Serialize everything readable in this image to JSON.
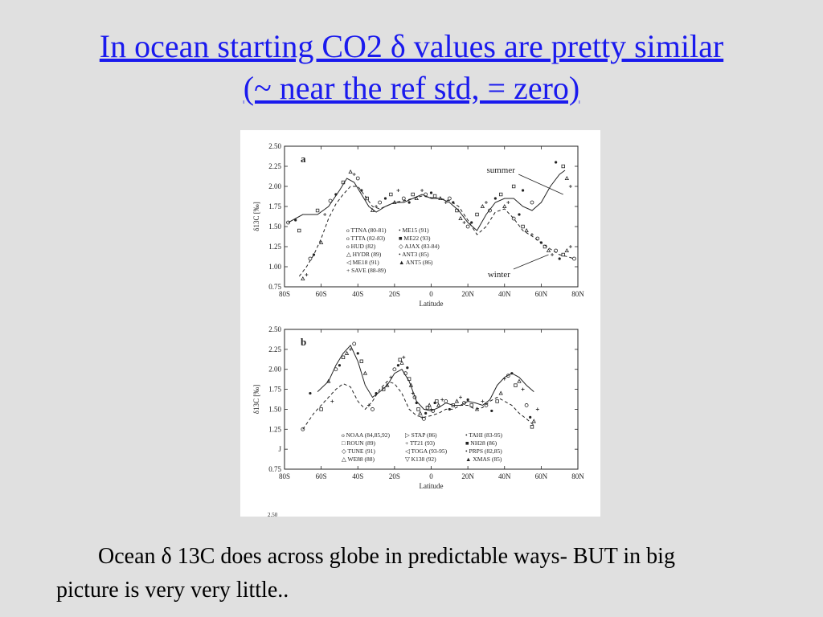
{
  "slide": {
    "title_line1": "In ocean starting CO2 δ values are pretty similar",
    "title_line2": "(~ near the ref std, = zero)",
    "caption_line1": "Ocean δ 13C does across globe in predictable ways- BUT in big",
    "caption_line2": "picture is very very little.."
  },
  "colors": {
    "background": "#e0e0e0",
    "title": "#1a1aee",
    "panel": "#ffffff",
    "ink": "#222222"
  },
  "chart_data": [
    {
      "panel_label": "a",
      "type": "scatter",
      "xlabel": "Latitude",
      "ylabel": "δ13C [‰]",
      "xticks": [
        "80S",
        "60S",
        "40S",
        "20S",
        "0",
        "20N",
        "40N",
        "60N",
        "80N"
      ],
      "yticks": [
        "2.50",
        "2.25",
        "2.00",
        "1.75",
        "1.50",
        "1.25",
        "1.00",
        "0.75"
      ],
      "xlim": [
        -80,
        80
      ],
      "ylim": [
        0.75,
        2.5
      ],
      "annotations": [
        {
          "text": "summer",
          "x": 38,
          "y": 2.17
        },
        {
          "text": "winter",
          "x": 37,
          "y": 0.87
        }
      ],
      "legend": [
        [
          "o TTNA (80-81)",
          "• ME15 (91)"
        ],
        [
          "o TTTA (82-83)",
          "■ ME22 (93)"
        ],
        [
          "o HUD (82)",
          "◇ AJAX (83-84)"
        ],
        [
          "△ HYDR (89)",
          "• ANT3 (85)"
        ],
        [
          "◁ ME18 (91)",
          "▲ ANT5 (86)"
        ],
        [
          "+ SAVE (88-89)",
          ""
        ]
      ],
      "series": [
        {
          "name": "summer",
          "style": "solid",
          "x": [
            -78,
            -70,
            -62,
            -56,
            -50,
            -46,
            -42,
            -38,
            -34,
            -30,
            -25,
            -20,
            -15,
            -10,
            -5,
            0,
            5,
            10,
            15,
            20,
            25,
            30,
            35,
            40,
            45,
            50,
            55,
            60,
            65,
            70,
            73
          ],
          "y": [
            1.55,
            1.65,
            1.65,
            1.75,
            1.95,
            2.1,
            2.05,
            1.9,
            1.75,
            1.68,
            1.75,
            1.8,
            1.8,
            1.85,
            1.9,
            1.85,
            1.85,
            1.8,
            1.7,
            1.55,
            1.45,
            1.65,
            1.8,
            1.85,
            1.85,
            1.75,
            1.7,
            1.8,
            2.0,
            2.15,
            2.2
          ]
        },
        {
          "name": "winter",
          "style": "dashed",
          "x": [
            -72,
            -68,
            -64,
            -60,
            -56,
            -52,
            -48,
            -44,
            -40,
            -36,
            -32,
            -28,
            -24,
            -20,
            -15,
            -10,
            -5,
            0,
            5,
            10,
            15,
            20,
            25,
            30,
            35,
            40,
            45,
            50,
            55,
            60,
            65,
            70,
            75,
            78
          ],
          "y": [
            0.88,
            1.0,
            1.15,
            1.35,
            1.6,
            1.78,
            1.9,
            2.0,
            2.0,
            1.88,
            1.75,
            1.72,
            1.76,
            1.8,
            1.82,
            1.85,
            1.88,
            1.86,
            1.85,
            1.82,
            1.75,
            1.58,
            1.4,
            1.5,
            1.68,
            1.72,
            1.6,
            1.45,
            1.38,
            1.3,
            1.22,
            1.15,
            1.12,
            1.1
          ]
        }
      ],
      "points": [
        [
          -78,
          1.55
        ],
        [
          -74,
          1.58
        ],
        [
          -72,
          1.45
        ],
        [
          -70,
          0.85
        ],
        [
          -68,
          0.9
        ],
        [
          -66,
          1.1
        ],
        [
          -64,
          1.15
        ],
        [
          -62,
          1.7
        ],
        [
          -60,
          1.3
        ],
        [
          -58,
          1.65
        ],
        [
          -55,
          1.82
        ],
        [
          -52,
          1.9
        ],
        [
          -48,
          2.05
        ],
        [
          -44,
          2.18
        ],
        [
          -42,
          2.15
        ],
        [
          -40,
          2.1
        ],
        [
          -38,
          1.95
        ],
        [
          -35,
          1.85
        ],
        [
          -32,
          1.7
        ],
        [
          -30,
          1.75
        ],
        [
          -28,
          1.8
        ],
        [
          -25,
          1.85
        ],
        [
          -22,
          1.9
        ],
        [
          -20,
          1.8
        ],
        [
          -18,
          1.95
        ],
        [
          -15,
          1.85
        ],
        [
          -12,
          1.8
        ],
        [
          -10,
          1.9
        ],
        [
          -8,
          1.85
        ],
        [
          -5,
          1.95
        ],
        [
          -3,
          1.9
        ],
        [
          0,
          1.92
        ],
        [
          2,
          1.88
        ],
        [
          5,
          1.85
        ],
        [
          8,
          1.8
        ],
        [
          10,
          1.85
        ],
        [
          12,
          1.8
        ],
        [
          14,
          1.7
        ],
        [
          16,
          1.6
        ],
        [
          18,
          1.55
        ],
        [
          20,
          1.5
        ],
        [
          22,
          1.55
        ],
        [
          25,
          1.65
        ],
        [
          28,
          1.75
        ],
        [
          30,
          1.8
        ],
        [
          32,
          1.7
        ],
        [
          35,
          1.85
        ],
        [
          38,
          1.9
        ],
        [
          40,
          1.75
        ],
        [
          42,
          1.8
        ],
        [
          45,
          1.6
        ],
        [
          48,
          1.65
        ],
        [
          50,
          1.5
        ],
        [
          52,
          1.45
        ],
        [
          55,
          1.4
        ],
        [
          58,
          1.35
        ],
        [
          60,
          1.3
        ],
        [
          62,
          1.25
        ],
        [
          64,
          1.2
        ],
        [
          66,
          1.15
        ],
        [
          68,
          1.2
        ],
        [
          70,
          1.1
        ],
        [
          72,
          1.15
        ],
        [
          74,
          1.2
        ],
        [
          76,
          1.25
        ],
        [
          78,
          1.1
        ],
        [
          68,
          2.3
        ],
        [
          72,
          2.25
        ],
        [
          74,
          2.1
        ],
        [
          76,
          2.0
        ],
        [
          55,
          1.8
        ],
        [
          50,
          1.95
        ],
        [
          45,
          2.0
        ]
      ]
    },
    {
      "panel_label": "b",
      "type": "scatter",
      "xlabel": "Latitude",
      "ylabel": "δ13C [‰]",
      "xticks": [
        "80S",
        "60S",
        "40S",
        "20S",
        "0",
        "20N",
        "40N",
        "60N",
        "80N"
      ],
      "yticks": [
        "2.50",
        "2.25",
        "2.00",
        "1.75",
        "1.50",
        "1.25",
        "J",
        "0.75"
      ],
      "xlim": [
        -80,
        80
      ],
      "ylim": [
        0.75,
        2.5
      ],
      "legend": [
        [
          "o NOAA (84,85,92)",
          "▷ STAP (86)",
          "• TAHI (83-95)"
        ],
        [
          "□ ROUN (89)",
          "+ TT21 (93)",
          "■ NH28 (86)"
        ],
        [
          "◇ TUNE (91)",
          "◁ TOGA (93-95)",
          "• PRPS (82,85)"
        ],
        [
          "△ WE88 (88)",
          "▽ K138 (92)",
          "▲ XMAS (85)"
        ]
      ],
      "series": [
        {
          "name": "",
          "style": "solid",
          "x": [
            -62,
            -56,
            -52,
            -48,
            -44,
            -40,
            -36,
            -32,
            -28,
            -24,
            -20,
            -16,
            -12,
            -8,
            -4,
            0,
            4,
            8,
            12,
            16,
            20,
            24,
            28,
            32,
            36,
            40,
            44,
            48,
            52,
            56
          ],
          "y": [
            1.72,
            1.85,
            2.05,
            2.2,
            2.3,
            2.1,
            1.8,
            1.65,
            1.72,
            1.8,
            1.95,
            2.0,
            1.85,
            1.6,
            1.5,
            1.48,
            1.52,
            1.58,
            1.55,
            1.55,
            1.6,
            1.58,
            1.55,
            1.62,
            1.8,
            1.9,
            1.95,
            1.9,
            1.8,
            1.72
          ]
        },
        {
          "name": "",
          "style": "dashed",
          "x": [
            -70,
            -64,
            -58,
            -52,
            -48,
            -44,
            -40,
            -36,
            -32,
            -28,
            -24,
            -20,
            -16,
            -12,
            -8,
            -4,
            0,
            4,
            8,
            12,
            16,
            20,
            24,
            28,
            32,
            36,
            40,
            44,
            48,
            52,
            56
          ],
          "y": [
            1.25,
            1.45,
            1.6,
            1.75,
            1.82,
            1.78,
            1.6,
            1.5,
            1.6,
            1.75,
            1.85,
            1.82,
            1.7,
            1.5,
            1.42,
            1.4,
            1.42,
            1.45,
            1.5,
            1.5,
            1.55,
            1.55,
            1.5,
            1.52,
            1.6,
            1.65,
            1.6,
            1.55,
            1.45,
            1.38,
            1.3
          ]
        }
      ],
      "points": [
        [
          -70,
          1.25
        ],
        [
          -66,
          1.7
        ],
        [
          -60,
          1.5
        ],
        [
          -56,
          1.85
        ],
        [
          -54,
          1.6
        ],
        [
          -52,
          2.0
        ],
        [
          -50,
          2.05
        ],
        [
          -48,
          2.15
        ],
        [
          -46,
          2.2
        ],
        [
          -44,
          2.25
        ],
        [
          -42,
          2.32
        ],
        [
          -40,
          2.2
        ],
        [
          -38,
          2.1
        ],
        [
          -36,
          1.95
        ],
        [
          -34,
          1.55
        ],
        [
          -32,
          1.5
        ],
        [
          -30,
          1.7
        ],
        [
          -26,
          1.75
        ],
        [
          -24,
          1.8
        ],
        [
          -22,
          1.9
        ],
        [
          -20,
          2.0
        ],
        [
          -18,
          2.05
        ],
        [
          -17,
          2.12
        ],
        [
          -16,
          2.08
        ],
        [
          -15,
          2.15
        ],
        [
          -14,
          1.95
        ],
        [
          -13,
          2.02
        ],
        [
          -12,
          1.88
        ],
        [
          -11,
          1.8
        ],
        [
          -10,
          1.7
        ],
        [
          -9,
          1.65
        ],
        [
          -8,
          1.58
        ],
        [
          -7,
          1.5
        ],
        [
          -6,
          1.45
        ],
        [
          -5,
          1.4
        ],
        [
          -4,
          1.38
        ],
        [
          -3,
          1.45
        ],
        [
          -2,
          1.52
        ],
        [
          -1,
          1.55
        ],
        [
          0,
          1.5
        ],
        [
          1,
          1.48
        ],
        [
          2,
          1.58
        ],
        [
          3,
          1.6
        ],
        [
          4,
          1.55
        ],
        [
          6,
          1.62
        ],
        [
          8,
          1.6
        ],
        [
          10,
          1.5
        ],
        [
          12,
          1.55
        ],
        [
          14,
          1.6
        ],
        [
          16,
          1.65
        ],
        [
          18,
          1.58
        ],
        [
          20,
          1.62
        ],
        [
          22,
          1.55
        ],
        [
          25,
          1.5
        ],
        [
          28,
          1.6
        ],
        [
          30,
          1.55
        ],
        [
          33,
          1.48
        ],
        [
          36,
          1.6
        ],
        [
          38,
          1.7
        ],
        [
          40,
          1.88
        ],
        [
          42,
          1.92
        ],
        [
          44,
          1.95
        ],
        [
          46,
          1.8
        ],
        [
          48,
          1.85
        ],
        [
          50,
          1.75
        ],
        [
          52,
          1.55
        ],
        [
          54,
          1.4
        ],
        [
          55,
          1.28
        ],
        [
          56,
          1.35
        ],
        [
          58,
          1.5
        ]
      ]
    }
  ]
}
